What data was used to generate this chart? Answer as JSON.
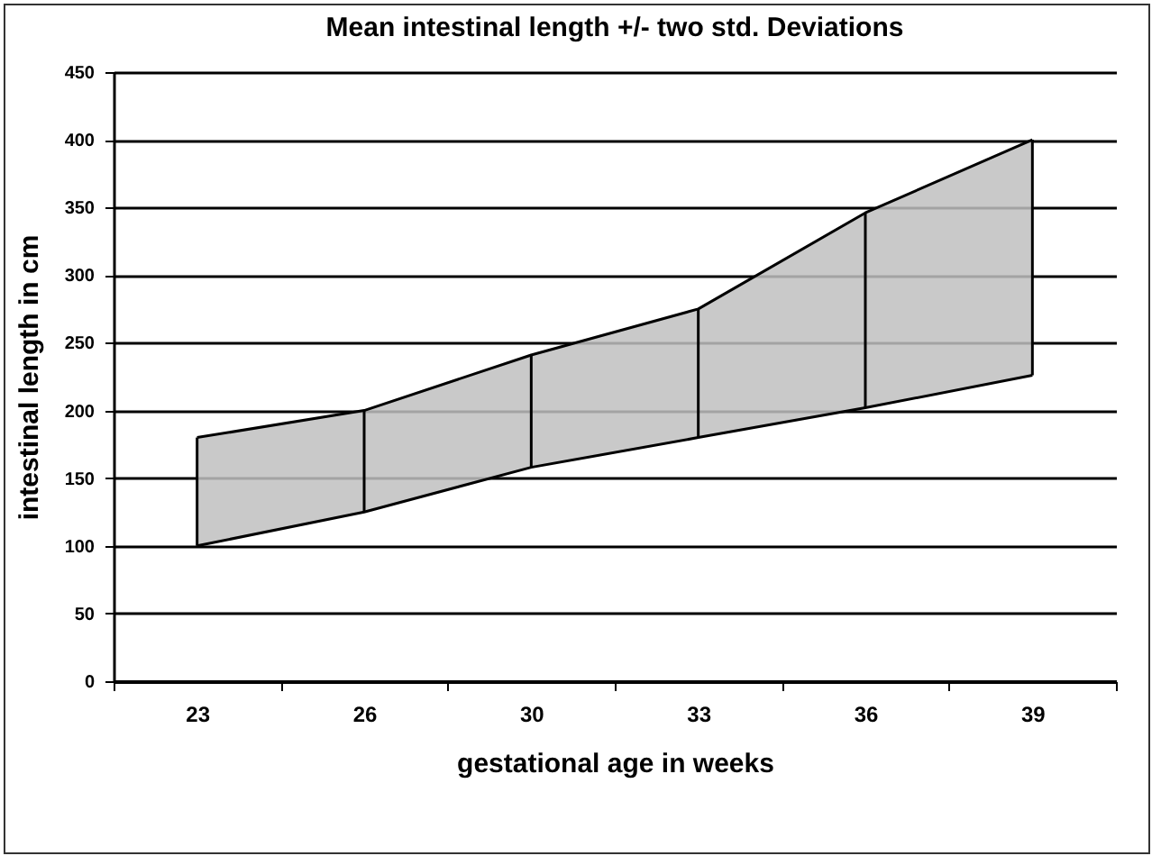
{
  "chart_data": {
    "type": "area",
    "title": "Mean intestinal length +/- two std. Deviations",
    "xlabel": "gestational age in weeks",
    "ylabel": "intestinal length in cm",
    "categories": [
      "23",
      "26",
      "30",
      "33",
      "36",
      "39"
    ],
    "series": [
      {
        "type": "line",
        "color": "#000000",
        "values": [
          100,
          125,
          158,
          180,
          202,
          226
        ]
      },
      {
        "color": "#c0c0c0",
        "values": [
          180,
          200,
          241,
          275,
          346,
          400
        ]
      }
    ],
    "ylim": [
      0,
      450
    ],
    "yticks": [
      0,
      50,
      100,
      150,
      200,
      250,
      300,
      350,
      400,
      450
    ],
    "grid": "y"
  }
}
